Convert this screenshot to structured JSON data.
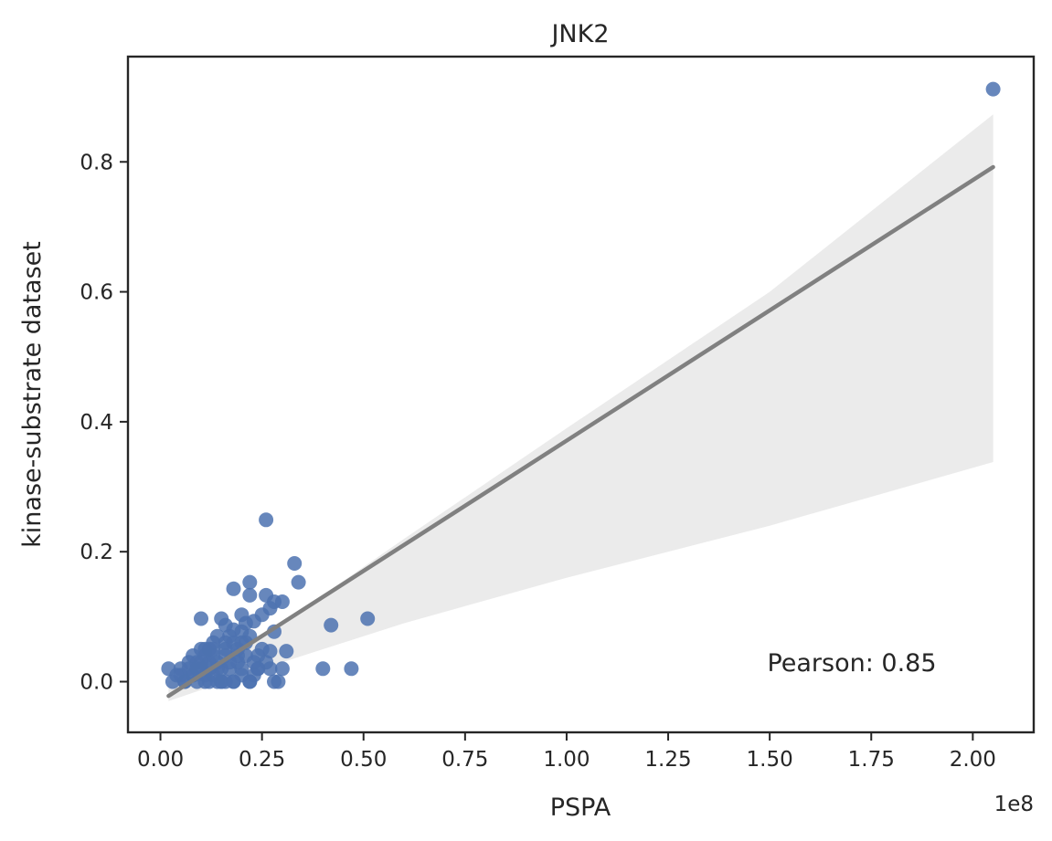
{
  "chart_data": {
    "type": "scatter",
    "title": "JNK2",
    "xlabel": "PSPA",
    "ylabel": "kinase-substrate dataset",
    "x_offset_label": "1e8",
    "annotation": "Pearson: 0.85",
    "x_scale": 100000000,
    "xlim": [
      -0.08,
      2.15
    ],
    "ylim": [
      -0.078,
      0.962
    ],
    "x_ticks": [
      0.0,
      0.25,
      0.5,
      0.75,
      1.0,
      1.25,
      1.5,
      1.75,
      2.0
    ],
    "x_tick_labels": [
      "0.00",
      "0.25",
      "0.50",
      "0.75",
      "1.00",
      "1.25",
      "1.50",
      "1.75",
      "2.00"
    ],
    "y_ticks": [
      0.0,
      0.2,
      0.4,
      0.6,
      0.8
    ],
    "y_tick_labels": [
      "0.0",
      "0.2",
      "0.4",
      "0.6",
      "0.8"
    ],
    "grid": false,
    "legend": "none",
    "colors": {
      "points": "#4c72b0",
      "regression_line": "#808080",
      "confidence_band": "#ebebeb",
      "axes": "#262626"
    },
    "regression": {
      "x": [
        0.02,
        2.05
      ],
      "y": [
        -0.022,
        0.792
      ]
    },
    "confidence_band": {
      "x": [
        0.02,
        0.3,
        0.6,
        1.0,
        1.5,
        2.05
      ],
      "upper": [
        0.0,
        0.09,
        0.22,
        0.39,
        0.6,
        0.873
      ],
      "lower": [
        -0.03,
        0.03,
        0.09,
        0.16,
        0.24,
        0.338
      ]
    },
    "series": [
      {
        "x": [
          2.05,
          0.26,
          0.33,
          0.34,
          0.22,
          0.18,
          0.26,
          0.3,
          0.22,
          0.2,
          0.27,
          0.28,
          0.51,
          0.42,
          0.1,
          0.15,
          0.16,
          0.2,
          0.23,
          0.25,
          0.28,
          0.31,
          0.3,
          0.27,
          0.4,
          0.47,
          0.02,
          0.03,
          0.04,
          0.05,
          0.06,
          0.07,
          0.08,
          0.09,
          0.1,
          0.11,
          0.12,
          0.13,
          0.14,
          0.15,
          0.16,
          0.17,
          0.18,
          0.19,
          0.2,
          0.21,
          0.22,
          0.23,
          0.24,
          0.25,
          0.05,
          0.07,
          0.09,
          0.11,
          0.13,
          0.15,
          0.17,
          0.19,
          0.21,
          0.23,
          0.06,
          0.08,
          0.1,
          0.12,
          0.14,
          0.16,
          0.18,
          0.2,
          0.22,
          0.24,
          0.12,
          0.14,
          0.16,
          0.18,
          0.13,
          0.17,
          0.21,
          0.19,
          0.15,
          0.11,
          0.28,
          0.27,
          0.26,
          0.29,
          0.08,
          0.1,
          0.12,
          0.14,
          0.16,
          0.18,
          0.2,
          0.22,
          0.24,
          0.09,
          0.11,
          0.13
        ],
        "y": [
          0.912,
          0.249,
          0.182,
          0.153,
          0.153,
          0.143,
          0.133,
          0.123,
          0.133,
          0.103,
          0.113,
          0.123,
          0.097,
          0.087,
          0.097,
          0.097,
          0.087,
          0.077,
          0.093,
          0.103,
          0.077,
          0.047,
          0.02,
          0.047,
          0.02,
          0.02,
          0.02,
          0.0,
          0.01,
          0.02,
          0.0,
          0.03,
          0.01,
          0.0,
          0.02,
          0.04,
          0.0,
          0.01,
          0.03,
          0.0,
          0.05,
          0.02,
          0.0,
          0.04,
          0.01,
          0.06,
          0.0,
          0.03,
          0.02,
          0.05,
          0.01,
          0.02,
          0.03,
          0.05,
          0.06,
          0.02,
          0.07,
          0.03,
          0.04,
          0.01,
          0.0,
          0.04,
          0.05,
          0.03,
          0.0,
          0.06,
          0.0,
          0.02,
          0.07,
          0.04,
          0.02,
          0.07,
          0.0,
          0.06,
          0.04,
          0.03,
          0.09,
          0.05,
          0.0,
          0.01,
          0.0,
          0.02,
          0.03,
          0.0,
          0.01,
          0.03,
          0.05,
          0.02,
          0.04,
          0.08,
          0.06,
          0.0,
          0.02,
          0.02,
          0.0,
          0.05
        ]
      }
    ]
  }
}
